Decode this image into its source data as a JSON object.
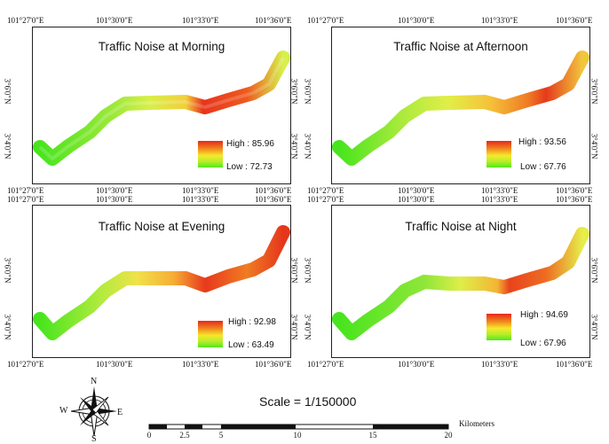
{
  "panels": [
    {
      "title": "Traffic Noise at Morning",
      "high": "High : 85.96",
      "low": "Low : 72.73",
      "top_ticks": [
        "101°27'0\"E",
        "101°30'0\"E",
        "101°33'0\"E",
        "101°36'0\"E"
      ],
      "bottom_ticks": [
        "101°27'0\"E",
        "101°30'0\"E",
        "101°33'0\"E",
        "101°36'0\"E"
      ],
      "left_ticks": [
        "3°6'0\"N",
        "3°4'0\"N"
      ],
      "right_ticks": [
        "3°6'0\"N",
        "3°4'0\"N"
      ]
    },
    {
      "title": "Traffic Noise at Afternoon",
      "high": "High : 93.56",
      "low": "Low : 67.76",
      "top_ticks": [
        "101°27'0\"E",
        "101°30'0\"E",
        "101°33'0\"E",
        "101°36'0\"E"
      ],
      "bottom_ticks": [
        "101°27'0\"E",
        "101°30'0\"E",
        "101°33'0\"E",
        "101°36'0\"E"
      ],
      "left_ticks": [
        "3°6'0\"N",
        "3°4'0\"N"
      ],
      "right_ticks": [
        "3°6'0\"N",
        "3°4'0\"N"
      ]
    },
    {
      "title": "Traffic Noise at Evening",
      "high": "High : 92.98",
      "low": "Low : 63.49",
      "top_ticks": [
        "101°27'0\"E",
        "101°30'0\"E",
        "101°33'0\"E",
        "101°36'0\"E"
      ],
      "bottom_ticks": [
        "101°27'0\"E",
        "101°30'0\"E",
        "101°33'0\"E",
        "101°36'0\"E"
      ],
      "left_ticks": [
        "3°6'0\"N",
        "3°4'0\"N"
      ],
      "right_ticks": [
        "3°6'0\"N",
        "3°4'0\"N"
      ]
    },
    {
      "title": "Traffic Noise at Night",
      "high": "High : 94.69",
      "low": "Low : 67.96",
      "top_ticks": [
        "101°27'0\"E",
        "101°30'0\"E",
        "101°33'0\"E",
        "101°36'0\"E"
      ],
      "bottom_ticks": [
        "101°27'0\"E",
        "101°30'0\"E",
        "101°33'0\"E",
        "101°36'0\"E"
      ],
      "left_ticks": [
        "3°6'0\"N",
        "3°4'0\"N"
      ],
      "right_ticks": [
        "3°6'0\"N",
        "3°4'0\"N"
      ]
    }
  ],
  "compass": {
    "n": "N",
    "s": "S",
    "e": "E",
    "w": "W"
  },
  "scale": {
    "title": "Scale = 1/150000",
    "unit": "Kilometers",
    "labels": [
      "0",
      "2.5",
      "5",
      "10",
      "15",
      "20"
    ]
  },
  "colors": {
    "high": "#e8271b",
    "mid": "#f7e82a",
    "low": "#52e81b"
  }
}
